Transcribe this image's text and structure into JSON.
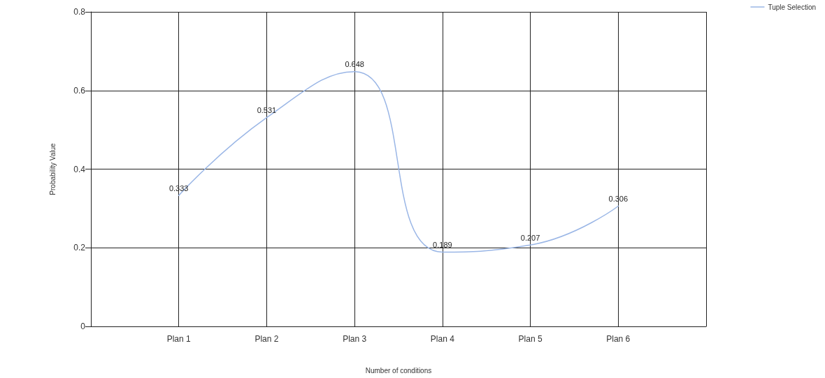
{
  "chart_data": {
    "type": "line",
    "xlabel": "Number of conditions",
    "ylabel": "Probability Value",
    "categories": [
      null,
      "Plan 1",
      "Plan 2",
      "Plan 3",
      "Plan 4",
      "Plan 5",
      "Plan 6",
      null
    ],
    "series": [
      {
        "name": "Tuple Selection",
        "color": "#9ab6e6",
        "values": [
          null,
          0.333,
          0.531,
          0.648,
          0.189,
          0.207,
          0.306,
          null
        ]
      }
    ],
    "ylim": [
      0,
      0.8
    ],
    "yticks": [
      0,
      0.2,
      0.4,
      0.6,
      0.8
    ],
    "grid": true,
    "legend": "top right",
    "data_labels": true,
    "marker": "none",
    "line_style": "solid"
  }
}
